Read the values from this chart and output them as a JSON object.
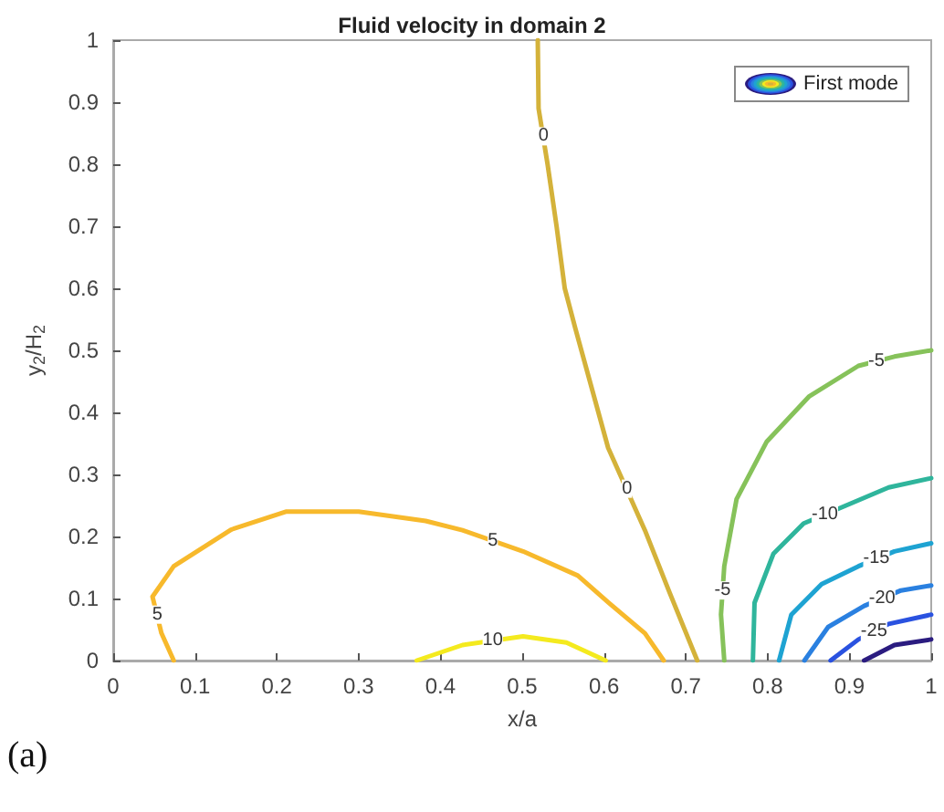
{
  "chart_data": {
    "type": "line",
    "title": "Fluid velocity in domain 2",
    "xlabel": "x/a",
    "ylabel": "y$_{2}$/H$_{2}$",
    "xlim": [
      0,
      1
    ],
    "xticks": [
      0,
      0.1,
      0.2,
      0.3,
      0.4,
      0.5,
      0.6,
      0.7,
      0.8,
      0.9,
      1
    ],
    "ylim": [
      0,
      1
    ],
    "yticks": [
      0,
      0.1,
      0.2,
      0.3,
      0.4,
      0.5,
      0.6,
      0.7,
      0.8,
      0.9,
      1
    ],
    "grid": false,
    "marker": "none",
    "line_style": "solid",
    "series": [
      {
        "color": "#d4b23a",
        "x": [
          0.519,
          0.52,
          0.531,
          0.542,
          0.552,
          0.565,
          0.605,
          0.65,
          0.68,
          0.714
        ],
        "values": [
          1,
          0.89,
          0.8,
          0.7,
          0.6,
          0.535,
          0.343,
          0.21,
          0.11,
          0
        ]
      },
      {
        "color": "#f7b92c",
        "x": [
          0.074,
          0.059,
          0.048,
          0.074,
          0.144,
          0.211,
          0.3,
          0.382,
          0.427,
          0.501,
          0.568,
          0.606,
          0.65,
          0.673
        ],
        "values": [
          0,
          0.044,
          0.103,
          0.152,
          0.211,
          0.24,
          0.24,
          0.225,
          0.21,
          0.176,
          0.137,
          0.093,
          0.044,
          0
        ]
      },
      {
        "color": "#f4ea1e",
        "x": [
          0.371,
          0.427,
          0.501,
          0.554,
          0.602
        ],
        "values": [
          0,
          0.025,
          0.039,
          0.029,
          0
        ]
      },
      {
        "color": "#86c25a",
        "x": [
          0.747,
          0.743,
          0.747,
          0.762,
          0.799,
          0.851,
          0.911,
          0.955,
          1
        ],
        "values": [
          0,
          0.074,
          0.152,
          0.26,
          0.353,
          0.426,
          0.475,
          0.49,
          0.5
        ]
      },
      {
        "color": "#2fb59c",
        "x": [
          0.782,
          0.784,
          0.807,
          0.844,
          0.896,
          0.948,
          1
        ],
        "values": [
          0,
          0.093,
          0.172,
          0.221,
          0.25,
          0.279,
          0.294
        ]
      },
      {
        "color": "#1ea3d2",
        "x": [
          0.814,
          0.829,
          0.866,
          0.911,
          0.955,
          1
        ],
        "values": [
          0,
          0.074,
          0.123,
          0.152,
          0.176,
          0.189
        ]
      },
      {
        "color": "#2a80e0",
        "x": [
          0.845,
          0.874,
          0.918,
          0.963,
          1
        ],
        "values": [
          0,
          0.054,
          0.088,
          0.113,
          0.121
        ]
      },
      {
        "color": "#2a52e0",
        "x": [
          0.877,
          0.911,
          0.948,
          1
        ],
        "values": [
          0,
          0.034,
          0.059,
          0.074
        ]
      },
      {
        "color": "#2b1c80",
        "x": [
          0.918,
          0.955,
          1
        ],
        "values": [
          0,
          0.025,
          0.034
        ]
      }
    ],
    "annotations": [
      {
        "text": "0",
        "x": 0.526,
        "y": 0.845
      },
      {
        "text": "0",
        "x": 0.628,
        "y": 0.277
      },
      {
        "text": "5",
        "x": 0.464,
        "y": 0.193
      },
      {
        "text": "5",
        "x": 0.054,
        "y": 0.074
      },
      {
        "text": "10",
        "x": 0.464,
        "y": 0.032
      },
      {
        "text": "-5",
        "x": 0.933,
        "y": 0.483
      },
      {
        "text": "-5",
        "x": 0.745,
        "y": 0.113
      },
      {
        "text": "-10",
        "x": 0.87,
        "y": 0.236
      },
      {
        "text": "-15",
        "x": 0.933,
        "y": 0.164
      },
      {
        "text": "-20",
        "x": 0.94,
        "y": 0.1
      },
      {
        "text": "-25",
        "x": 0.93,
        "y": 0.047
      },
      "First mode",
      "(a)"
    ]
  }
}
